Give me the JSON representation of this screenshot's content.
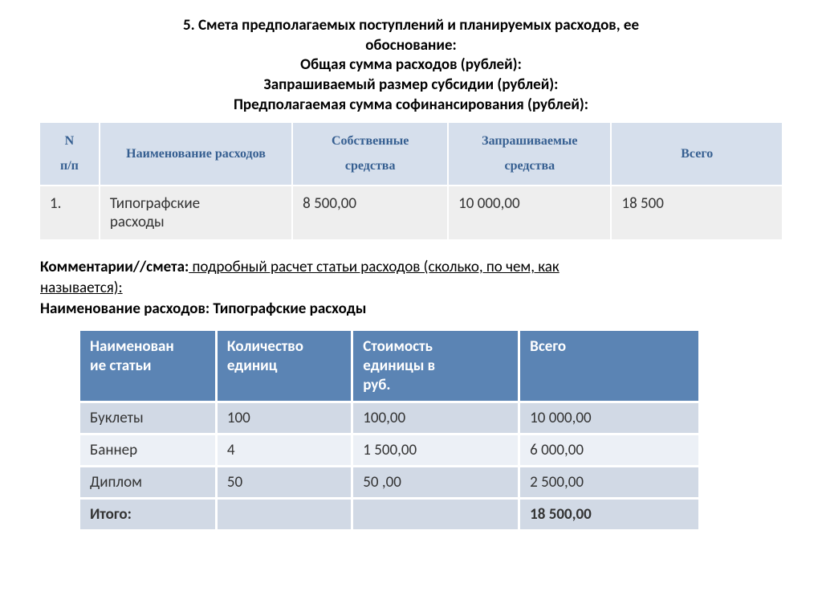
{
  "heading": {
    "line1": "5. Смета предполагаемых поступлений и планируемых расходов, ее",
    "line2": "обоснование:",
    "line3": "Общая сумма расходов (рублей):",
    "line4": "Запрашиваемый размер субсидии (рублей):",
    "line5": "Предполагаемая сумма софинансирования (рублей):"
  },
  "table1": {
    "headers": {
      "c0a": "N",
      "c0b": "п/п",
      "c1": "Наименование расходов",
      "c2a": "Собственные",
      "c2b": "средства",
      "c3a": "Запрашиваемые",
      "c3b": "средства",
      "c4": "Всего"
    },
    "row": {
      "num": "1.",
      "name_a": "Типографские",
      "name_b": "расходы",
      "own": "8 500,00",
      "req": "10 000,00",
      "total": "18 500"
    },
    "col_widths": [
      "8%",
      "26%",
      "21%",
      "22%",
      "23%"
    ],
    "header_bg": "#d6dfec",
    "header_color": "#365f91",
    "row_bg": "#eeeeee"
  },
  "comment": {
    "prefix": "Комментарии//смета:",
    "text1": " подробный расчет статьи расходов (сколько, по чем, как",
    "text2": "называется):",
    "line3": "Наименование расходов: Типографские расходы"
  },
  "table2": {
    "headers": {
      "c0a": "Наименован",
      "c0b": "ие статьи",
      "c1a": "Количество",
      "c1b": "единиц",
      "c2a": "Стоимость",
      "c2b": "единицы в",
      "c2c": "руб.",
      "c3": "Всего"
    },
    "rows": [
      {
        "name": "Буклеты",
        "qty": "100",
        "price": "100,00",
        "total": "10 000,00"
      },
      {
        "name": "Баннер",
        "qty": "4",
        "price": "1 500,00",
        "total": "6 000,00"
      },
      {
        "name": "Диплом",
        "qty": "50",
        "price": "50 ,00",
        "total": "2 500,00"
      }
    ],
    "total_row": {
      "label": "Итого:",
      "c1": "",
      "c2": "",
      "total": "18 500,00"
    },
    "col_widths": [
      "22%",
      "22%",
      "27%",
      "29%"
    ],
    "header_bg": "#5b84b4",
    "header_color": "#ffffff",
    "row_light_bg": "#d1d9e5",
    "row_dark_bg": "#ecf0f6"
  }
}
